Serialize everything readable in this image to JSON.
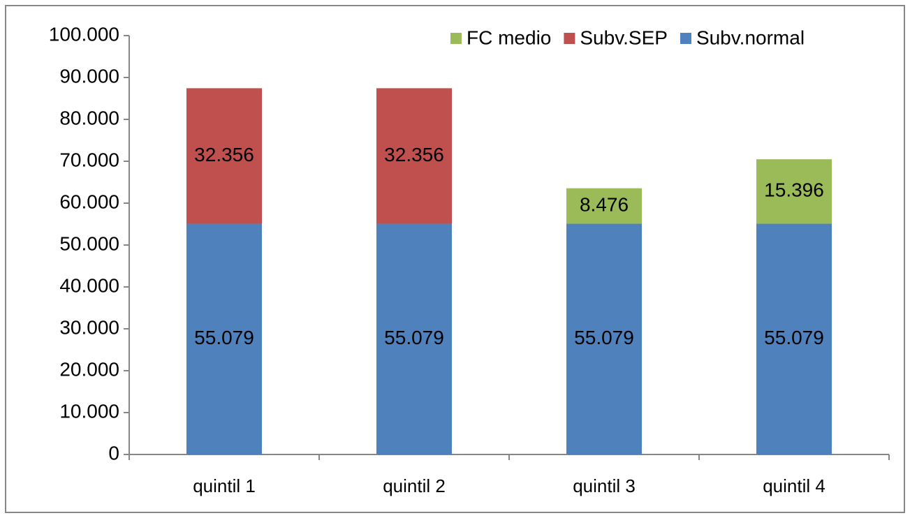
{
  "chart_data": {
    "type": "stacked_bar",
    "categories": [
      "quintil 1",
      "quintil 2",
      "quintil 3",
      "quintil 4"
    ],
    "series": [
      {
        "name": "Subv.normal",
        "color": "#4f81bd",
        "values": [
          55079,
          55079,
          55079,
          55079
        ],
        "value_labels": [
          "55.079",
          "55.079",
          "55.079",
          "55.079"
        ]
      },
      {
        "name": "Subv.SEP",
        "color": "#c0504d",
        "values": [
          32356,
          32356,
          null,
          null
        ],
        "value_labels": [
          "32.356",
          "32.356",
          null,
          null
        ]
      },
      {
        "name": "FC medio",
        "color": "#9bbb59",
        "values": [
          null,
          null,
          8476,
          15396
        ],
        "value_labels": [
          null,
          null,
          "8.476",
          "15.396"
        ]
      }
    ],
    "ylim": [
      0,
      100000
    ],
    "yticks": [
      0,
      {
        "value": 10000,
        "label": "10.000"
      },
      {
        "value": 20000,
        "label": "20.000"
      },
      {
        "value": 30000,
        "label": "30.000"
      },
      {
        "value": 40000,
        "label": "40.000"
      },
      {
        "value": 50000,
        "label": "50.000"
      },
      {
        "value": 60000,
        "label": "60.000"
      },
      {
        "value": 70000,
        "label": "70.000"
      },
      {
        "value": 80000,
        "label": "80.000"
      },
      {
        "value": 90000,
        "label": "90.000"
      },
      {
        "value": 100000,
        "label": "100.000"
      }
    ],
    "legend": "top-right"
  }
}
